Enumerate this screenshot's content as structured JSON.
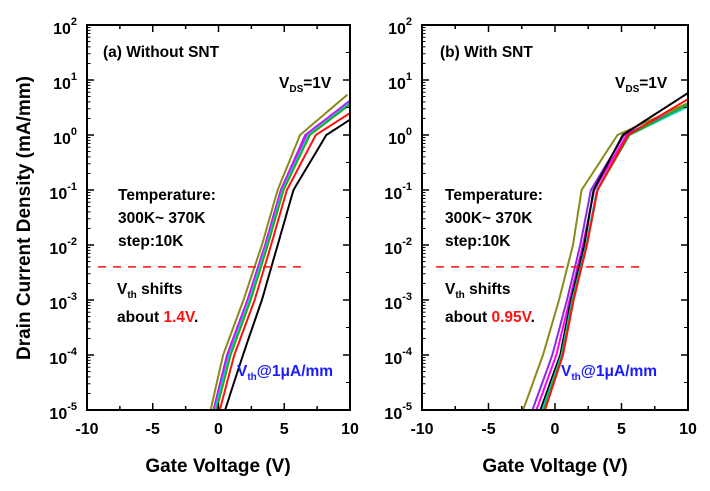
{
  "chart_data": [
    {
      "type": "line",
      "panel_title": "(a) Without SNT",
      "xlabel": "Gate Voltage (V)",
      "ylabel": "Drain Current Density (mA/mm)",
      "xlim": [
        -10,
        10
      ],
      "ylim": [
        1e-05,
        100
      ],
      "yscale": "log",
      "x_ticks": [
        "-10",
        "-5",
        "0",
        "5",
        "10"
      ],
      "y_tick_exponents": [
        2,
        1,
        0,
        -1,
        -2,
        -3,
        -4,
        -5
      ],
      "annotations": {
        "vds_main": "V",
        "vds_sub": "DS",
        "vds_rest": "=1V",
        "temp_line1": "Temperature:",
        "temp_line2": "300K~ 370K",
        "temp_line3": "step:10K",
        "vth_main": "V",
        "vth_sub": "th",
        "vth_rest": " shifts",
        "about_label": "about ",
        "shift_value": "1.4V",
        "shift_end": ".",
        "crit_main": "V",
        "crit_sub": "th",
        "crit_rest": "@1μA/mm"
      },
      "reference_line_current": 0.004,
      "series": [
        {
          "name": "olive",
          "color": "#8a8a1a",
          "x": [
            -0.6,
            0.35,
            1.9,
            3.3,
            4.5,
            6.2,
            9.8
          ],
          "y": [
            1e-05,
            0.0001,
            0.001,
            0.01,
            0.1,
            1,
            5.4
          ]
        },
        {
          "name": "purple",
          "color": "#8a2be2",
          "x": [
            -0.38,
            0.65,
            2.2,
            3.54,
            4.74,
            6.6,
            10
          ],
          "y": [
            1e-05,
            0.0001,
            0.001,
            0.01,
            0.1,
            1,
            4.2
          ]
        },
        {
          "name": "magenta",
          "color": "#ff00ff",
          "x": [
            -0.32,
            0.73,
            2.25,
            3.6,
            4.8,
            6.7,
            10
          ],
          "y": [
            1e-05,
            0.0001,
            0.001,
            0.01,
            0.1,
            1,
            4.0
          ]
        },
        {
          "name": "cyan",
          "color": "#00d8e8",
          "x": [
            -0.25,
            0.83,
            2.35,
            3.68,
            4.88,
            6.85,
            10
          ],
          "y": [
            1e-05,
            0.0001,
            0.001,
            0.01,
            0.1,
            1,
            3.8
          ]
        },
        {
          "name": "green",
          "color": "#22aa22",
          "x": [
            -0.15,
            0.92,
            2.45,
            3.75,
            4.95,
            6.95,
            10
          ],
          "y": [
            1e-05,
            0.0001,
            0.001,
            0.01,
            0.1,
            1,
            3.6
          ]
        },
        {
          "name": "red",
          "color": "#ff1010",
          "x": [
            0.1,
            1.2,
            2.75,
            4.0,
            5.2,
            7.4,
            10
          ],
          "y": [
            1e-05,
            0.0001,
            0.001,
            0.01,
            0.1,
            1,
            2.5
          ]
        },
        {
          "name": "black",
          "color": "#000000",
          "x": [
            0.5,
            1.86,
            3.3,
            4.5,
            5.7,
            8.2,
            10
          ],
          "y": [
            1e-05,
            0.0001,
            0.001,
            0.01,
            0.1,
            1,
            1.9
          ]
        }
      ]
    },
    {
      "type": "line",
      "panel_title": "(b) With SNT",
      "xlabel": "Gate Voltage (V)",
      "xlim": [
        -10,
        10
      ],
      "ylim": [
        1e-05,
        100
      ],
      "yscale": "log",
      "x_ticks": [
        "-10",
        "-5",
        "0",
        "5",
        "10"
      ],
      "annotations": {
        "vds_main": "V",
        "vds_sub": "DS",
        "vds_rest": "=1V",
        "temp_line1": "Temperature:",
        "temp_line2": "300K~ 370K",
        "temp_line3": "step:10K",
        "vth_main": "V",
        "vth_sub": "th",
        "vth_rest": " shifts",
        "about_label": "about ",
        "shift_value": "0.95V",
        "shift_end": ".",
        "crit_main": "V",
        "crit_sub": "th",
        "crit_rest": "@1μA/mm"
      },
      "reference_line_current": 0.004,
      "series": [
        {
          "name": "olive",
          "color": "#8a8a1a",
          "x": [
            -2.4,
            -0.9,
            0.3,
            1.35,
            2.0,
            4.7,
            10
          ],
          "y": [
            1e-05,
            0.0001,
            0.001,
            0.01,
            0.1,
            1,
            3.8
          ]
        },
        {
          "name": "purple",
          "color": "#8a2be2",
          "x": [
            -1.7,
            -0.2,
            0.9,
            1.9,
            2.7,
            5.2,
            10
          ],
          "y": [
            1e-05,
            0.0001,
            0.001,
            0.01,
            0.1,
            1,
            3.5
          ]
        },
        {
          "name": "magenta",
          "color": "#ff00ff",
          "x": [
            -1.4,
            0.1,
            1.1,
            2.1,
            2.95,
            5.4,
            10
          ],
          "y": [
            1e-05,
            0.0001,
            0.001,
            0.01,
            0.1,
            1,
            3.4
          ]
        },
        {
          "name": "black",
          "color": "#000000",
          "x": [
            -1.1,
            0.4,
            1.2,
            2.2,
            2.9,
            5.1,
            10
          ],
          "y": [
            1e-05,
            0.0001,
            0.001,
            0.01,
            0.1,
            1,
            5.8
          ]
        },
        {
          "name": "cyan",
          "color": "#00d8e8",
          "x": [
            -0.95,
            0.5,
            1.3,
            2.35,
            3.15,
            5.6,
            10
          ],
          "y": [
            1e-05,
            0.0001,
            0.001,
            0.01,
            0.1,
            1,
            3.3
          ]
        },
        {
          "name": "green",
          "color": "#22aa22",
          "x": [
            -0.85,
            0.55,
            1.35,
            2.4,
            3.2,
            5.6,
            10
          ],
          "y": [
            1e-05,
            0.0001,
            0.001,
            0.01,
            0.1,
            1,
            3.6
          ]
        },
        {
          "name": "red",
          "color": "#ff1010",
          "x": [
            -0.75,
            0.6,
            1.4,
            2.4,
            3.2,
            5.5,
            10
          ],
          "y": [
            1e-05,
            0.0001,
            0.001,
            0.01,
            0.1,
            1,
            4.5
          ]
        }
      ]
    }
  ],
  "colors": {
    "highlight": "#ff1010",
    "criterion": "#1a1aff",
    "reference_line": "#ff1010"
  }
}
